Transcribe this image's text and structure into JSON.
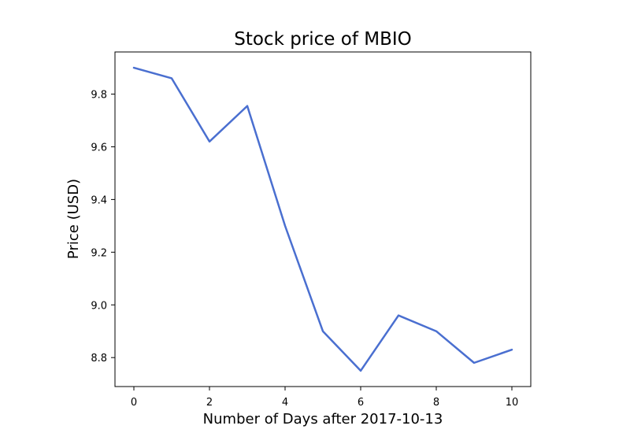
{
  "chart_data": {
    "type": "line",
    "title": "Stock price of MBIO",
    "xlabel": "Number of Days after 2017-10-13",
    "ylabel": "Price (USD)",
    "xlim": [
      -0.5,
      10.5
    ],
    "ylim": [
      8.69,
      9.96
    ],
    "xticks": [
      0,
      2,
      4,
      6,
      8,
      10
    ],
    "yticks": [
      8.8,
      9.0,
      9.2,
      9.4,
      9.6,
      9.8
    ],
    "grid": false,
    "legend": "none",
    "series": [
      {
        "color": "#4a6fd0",
        "x": [
          0,
          1,
          2,
          3,
          4,
          5,
          6,
          7,
          8,
          9,
          10
        ],
        "y": [
          9.9,
          9.86,
          9.62,
          9.755,
          9.3,
          8.9,
          8.75,
          8.96,
          8.9,
          8.78,
          8.83
        ]
      }
    ]
  }
}
